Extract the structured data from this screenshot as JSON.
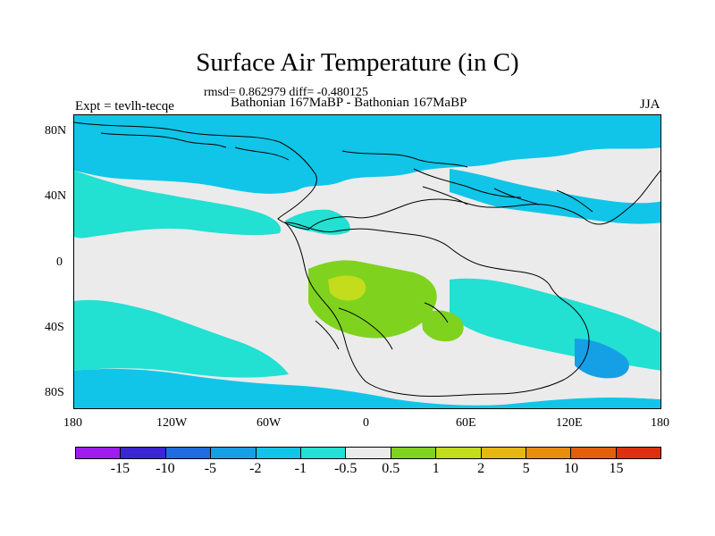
{
  "title": "Surface Air Temperature (in C)",
  "stats_line": "rmsd= 0.862979 diff= -0.480125",
  "expt_label": "Expt = tevlh-tecqe",
  "case_label": "Bathonian 167MaBP - Bathonian 167MaBP",
  "season_label": "JJA",
  "lat_ticks": [
    "80N",
    "40N",
    "0",
    "40S",
    "80S"
  ],
  "lon_ticks": [
    "180",
    "120W",
    "60W",
    "0",
    "60E",
    "120E",
    "180"
  ],
  "colorbar": {
    "colors": [
      "#9e1cf0",
      "#3b26d6",
      "#1e6ce0",
      "#15a0e6",
      "#11c5e8",
      "#22e0d2",
      "#ebebeb",
      "#7fd31e",
      "#c3dc1c",
      "#e5b710",
      "#e88d0c",
      "#e45f0a",
      "#e02f10"
    ],
    "labels": [
      "-15",
      "-10",
      "-5",
      "-2",
      "-1",
      "-0.5",
      "0.5",
      "1",
      "2",
      "5",
      "10",
      "15"
    ]
  },
  "field_colors": {
    "neutral": "#ebebeb",
    "cool_light": "#22e0d2",
    "cool": "#11c5e8",
    "cool_mid": "#15a0e6",
    "warm_light": "#7fd31e",
    "warm": "#c3dc1c"
  }
}
